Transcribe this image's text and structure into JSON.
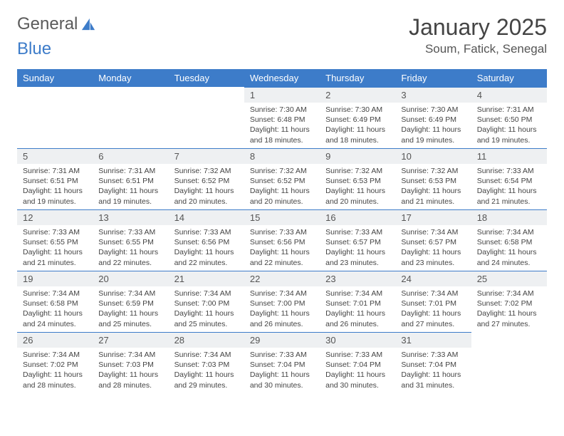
{
  "brand": {
    "part1": "General",
    "part2": "Blue"
  },
  "title": "January 2025",
  "location": "Soum, Fatick, Senegal",
  "colors": {
    "accent": "#3d7cc9",
    "daybg": "#eef0f2"
  },
  "weekdays": [
    "Sunday",
    "Monday",
    "Tuesday",
    "Wednesday",
    "Thursday",
    "Friday",
    "Saturday"
  ],
  "startWeekday": 3,
  "days": [
    {
      "n": 1,
      "sr": "7:30 AM",
      "ss": "6:48 PM",
      "dl": "11 hours and 18 minutes."
    },
    {
      "n": 2,
      "sr": "7:30 AM",
      "ss": "6:49 PM",
      "dl": "11 hours and 18 minutes."
    },
    {
      "n": 3,
      "sr": "7:30 AM",
      "ss": "6:49 PM",
      "dl": "11 hours and 19 minutes."
    },
    {
      "n": 4,
      "sr": "7:31 AM",
      "ss": "6:50 PM",
      "dl": "11 hours and 19 minutes."
    },
    {
      "n": 5,
      "sr": "7:31 AM",
      "ss": "6:51 PM",
      "dl": "11 hours and 19 minutes."
    },
    {
      "n": 6,
      "sr": "7:31 AM",
      "ss": "6:51 PM",
      "dl": "11 hours and 19 minutes."
    },
    {
      "n": 7,
      "sr": "7:32 AM",
      "ss": "6:52 PM",
      "dl": "11 hours and 20 minutes."
    },
    {
      "n": 8,
      "sr": "7:32 AM",
      "ss": "6:52 PM",
      "dl": "11 hours and 20 minutes."
    },
    {
      "n": 9,
      "sr": "7:32 AM",
      "ss": "6:53 PM",
      "dl": "11 hours and 20 minutes."
    },
    {
      "n": 10,
      "sr": "7:32 AM",
      "ss": "6:53 PM",
      "dl": "11 hours and 21 minutes."
    },
    {
      "n": 11,
      "sr": "7:33 AM",
      "ss": "6:54 PM",
      "dl": "11 hours and 21 minutes."
    },
    {
      "n": 12,
      "sr": "7:33 AM",
      "ss": "6:55 PM",
      "dl": "11 hours and 21 minutes."
    },
    {
      "n": 13,
      "sr": "7:33 AM",
      "ss": "6:55 PM",
      "dl": "11 hours and 22 minutes."
    },
    {
      "n": 14,
      "sr": "7:33 AM",
      "ss": "6:56 PM",
      "dl": "11 hours and 22 minutes."
    },
    {
      "n": 15,
      "sr": "7:33 AM",
      "ss": "6:56 PM",
      "dl": "11 hours and 22 minutes."
    },
    {
      "n": 16,
      "sr": "7:33 AM",
      "ss": "6:57 PM",
      "dl": "11 hours and 23 minutes."
    },
    {
      "n": 17,
      "sr": "7:34 AM",
      "ss": "6:57 PM",
      "dl": "11 hours and 23 minutes."
    },
    {
      "n": 18,
      "sr": "7:34 AM",
      "ss": "6:58 PM",
      "dl": "11 hours and 24 minutes."
    },
    {
      "n": 19,
      "sr": "7:34 AM",
      "ss": "6:58 PM",
      "dl": "11 hours and 24 minutes."
    },
    {
      "n": 20,
      "sr": "7:34 AM",
      "ss": "6:59 PM",
      "dl": "11 hours and 25 minutes."
    },
    {
      "n": 21,
      "sr": "7:34 AM",
      "ss": "7:00 PM",
      "dl": "11 hours and 25 minutes."
    },
    {
      "n": 22,
      "sr": "7:34 AM",
      "ss": "7:00 PM",
      "dl": "11 hours and 26 minutes."
    },
    {
      "n": 23,
      "sr": "7:34 AM",
      "ss": "7:01 PM",
      "dl": "11 hours and 26 minutes."
    },
    {
      "n": 24,
      "sr": "7:34 AM",
      "ss": "7:01 PM",
      "dl": "11 hours and 27 minutes."
    },
    {
      "n": 25,
      "sr": "7:34 AM",
      "ss": "7:02 PM",
      "dl": "11 hours and 27 minutes."
    },
    {
      "n": 26,
      "sr": "7:34 AM",
      "ss": "7:02 PM",
      "dl": "11 hours and 28 minutes."
    },
    {
      "n": 27,
      "sr": "7:34 AM",
      "ss": "7:03 PM",
      "dl": "11 hours and 28 minutes."
    },
    {
      "n": 28,
      "sr": "7:34 AM",
      "ss": "7:03 PM",
      "dl": "11 hours and 29 minutes."
    },
    {
      "n": 29,
      "sr": "7:33 AM",
      "ss": "7:04 PM",
      "dl": "11 hours and 30 minutes."
    },
    {
      "n": 30,
      "sr": "7:33 AM",
      "ss": "7:04 PM",
      "dl": "11 hours and 30 minutes."
    },
    {
      "n": 31,
      "sr": "7:33 AM",
      "ss": "7:04 PM",
      "dl": "11 hours and 31 minutes."
    }
  ],
  "labels": {
    "sunrise": "Sunrise:",
    "sunset": "Sunset:",
    "daylight": "Daylight:"
  }
}
